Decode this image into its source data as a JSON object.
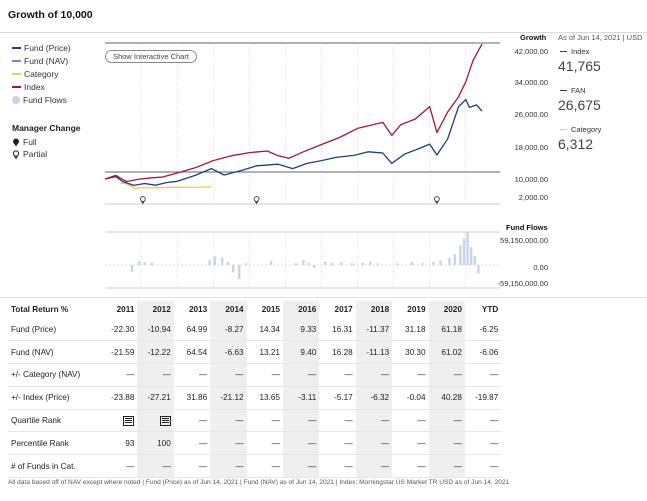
{
  "title": "Growth of 10,000",
  "legend": [
    {
      "label": "Fund (Price)",
      "color": "#1f3f7a",
      "kind": "line"
    },
    {
      "label": "Fund (NAV)",
      "color": "#7e8aa0",
      "kind": "line"
    },
    {
      "label": "Category",
      "color": "#f0c960",
      "kind": "line"
    },
    {
      "label": "Index",
      "color": "#a0183c",
      "kind": "line"
    },
    {
      "label": "Fund Flows",
      "color": "#c8d4e6",
      "kind": "dot"
    }
  ],
  "manager_change": {
    "title": "Manager Change",
    "items": [
      {
        "label": "Full",
        "icon": "filled-pin-icon"
      },
      {
        "label": "Partial",
        "icon": "hollow-pin-icon"
      }
    ]
  },
  "interactive_button": "Show Interactive Chart",
  "growth_axis": {
    "header": "Growth",
    "ticks": [
      "42,000.00",
      "34,000.00",
      "26,000.00",
      "18,000.00",
      "10,000.00",
      "2,000.00"
    ]
  },
  "as_of": "As of Jun 14, 2021 | USD",
  "side_values": [
    {
      "name": "Index",
      "value": "41,765",
      "color": "#a0183c"
    },
    {
      "name": "FAN",
      "value": "26,675",
      "color": "#1f3f7a"
    },
    {
      "name": "Category",
      "value": "6,312",
      "color": "#f0c960"
    }
  ],
  "fund_flows": {
    "header": "Fund Flows",
    "ticks": [
      "59,150,000.00",
      "0.00",
      "-59,150,000.00"
    ]
  },
  "chart_data": {
    "type": "line",
    "title": "Growth of 10,000",
    "x_range": [
      2011,
      2021.45
    ],
    "y_range": [
      2000,
      42000
    ],
    "yticks": [
      42000,
      34000,
      26000,
      18000,
      10000,
      2000
    ],
    "series": [
      {
        "name": "Index",
        "color": "#a0183c",
        "points": [
          [
            2011.0,
            10000
          ],
          [
            2011.3,
            10900
          ],
          [
            2011.6,
            8800
          ],
          [
            2011.9,
            9800
          ],
          [
            2012.3,
            10300
          ],
          [
            2012.6,
            10500
          ],
          [
            2013.0,
            11500
          ],
          [
            2013.5,
            12800
          ],
          [
            2014.0,
            14600
          ],
          [
            2014.5,
            15800
          ],
          [
            2015.0,
            16600
          ],
          [
            2015.5,
            17000
          ],
          [
            2015.8,
            15800
          ],
          [
            2016.1,
            15200
          ],
          [
            2016.5,
            16800
          ],
          [
            2017.0,
            18600
          ],
          [
            2017.5,
            20300
          ],
          [
            2018.0,
            22500
          ],
          [
            2018.7,
            24000
          ],
          [
            2018.95,
            20800
          ],
          [
            2019.2,
            23400
          ],
          [
            2019.6,
            24800
          ],
          [
            2020.0,
            27800
          ],
          [
            2020.2,
            21500
          ],
          [
            2020.5,
            26500
          ],
          [
            2020.8,
            30200
          ],
          [
            2021.0,
            33800
          ],
          [
            2021.2,
            38300
          ],
          [
            2021.45,
            41765
          ]
        ]
      },
      {
        "name": "Fund (Price)",
        "color": "#1f3f7a",
        "points": [
          [
            2011.0,
            10000
          ],
          [
            2011.3,
            10600
          ],
          [
            2011.5,
            8700
          ],
          [
            2011.8,
            7000
          ],
          [
            2012.1,
            7900
          ],
          [
            2012.4,
            7100
          ],
          [
            2012.7,
            8300
          ],
          [
            2013.0,
            8900
          ],
          [
            2013.5,
            10900
          ],
          [
            2013.95,
            12600
          ],
          [
            2014.3,
            11000
          ],
          [
            2014.8,
            12200
          ],
          [
            2015.2,
            13300
          ],
          [
            2015.8,
            13700
          ],
          [
            2016.2,
            12600
          ],
          [
            2016.6,
            13900
          ],
          [
            2017.0,
            14600
          ],
          [
            2017.4,
            15400
          ],
          [
            2017.9,
            15900
          ],
          [
            2018.3,
            16800
          ],
          [
            2018.7,
            16500
          ],
          [
            2018.95,
            13900
          ],
          [
            2019.3,
            16200
          ],
          [
            2019.7,
            17600
          ],
          [
            2020.0,
            18700
          ],
          [
            2020.2,
            16000
          ],
          [
            2020.5,
            20000
          ],
          [
            2020.8,
            27800
          ],
          [
            2021.0,
            29500
          ],
          [
            2021.1,
            27600
          ],
          [
            2021.3,
            28200
          ],
          [
            2021.45,
            26675
          ]
        ]
      },
      {
        "name": "Category",
        "color": "#f0c960",
        "points": [
          [
            2011.4,
            7800
          ],
          [
            2011.55,
            8100
          ],
          [
            2011.7,
            6700
          ],
          [
            2011.85,
            5500
          ],
          [
            2012.0,
            6000
          ],
          [
            2012.2,
            5800
          ],
          [
            2012.5,
            5900
          ],
          [
            2012.8,
            6100
          ],
          [
            2013.0,
            6150
          ],
          [
            2013.5,
            6050
          ],
          [
            2013.95,
            6312
          ]
        ]
      }
    ],
    "manager_change_markers": [
      {
        "x": 2012.05,
        "type": "Partial"
      },
      {
        "x": 2015.2,
        "type": "Partial"
      },
      {
        "x": 2020.2,
        "type": "Partial"
      }
    ]
  },
  "fund_flow_bars": [
    {
      "x": 2011.75,
      "v": -12000000.0
    },
    {
      "x": 2011.95,
      "v": 7000000.0
    },
    {
      "x": 2012.1,
      "v": 5000000.0
    },
    {
      "x": 2012.3,
      "v": 4000000.0
    },
    {
      "x": 2013.9,
      "v": 9000000.0
    },
    {
      "x": 2014.05,
      "v": 15000000.0
    },
    {
      "x": 2014.25,
      "v": 13000000.0
    },
    {
      "x": 2014.4,
      "v": 6000000.0
    },
    {
      "x": 2014.55,
      "v": -13000000.0
    },
    {
      "x": 2014.72,
      "v": -25000000.0
    },
    {
      "x": 2014.9,
      "v": 3000000.0
    },
    {
      "x": 2015.6,
      "v": 7000000.0
    },
    {
      "x": 2016.3,
      "v": 3000000.0
    },
    {
      "x": 2016.5,
      "v": 9000000.0
    },
    {
      "x": 2016.65,
      "v": 4000000.0
    },
    {
      "x": 2016.8,
      "v": -5000000.0
    },
    {
      "x": 2017.1,
      "v": 6000000.0
    },
    {
      "x": 2017.3,
      "v": 4000000.0
    },
    {
      "x": 2017.55,
      "v": 5000000.0
    },
    {
      "x": 2017.85,
      "v": 3000000.0
    },
    {
      "x": 2018.15,
      "v": 4000000.0
    },
    {
      "x": 2018.35,
      "v": 6000000.0
    },
    {
      "x": 2018.55,
      "v": 3000000.0
    },
    {
      "x": 2019.1,
      "v": 3000000.0
    },
    {
      "x": 2019.5,
      "v": 6000000.0
    },
    {
      "x": 2019.8,
      "v": 4000000.0
    },
    {
      "x": 2020.1,
      "v": 5000000.0
    },
    {
      "x": 2020.3,
      "v": 8000000.0
    },
    {
      "x": 2020.55,
      "v": 13000000.0
    },
    {
      "x": 2020.7,
      "v": 19000000.0
    },
    {
      "x": 2020.85,
      "v": 35000000.0
    },
    {
      "x": 2020.95,
      "v": 48000000.0
    },
    {
      "x": 2021.05,
      "v": 59000000.0
    },
    {
      "x": 2021.15,
      "v": 32000000.0
    },
    {
      "x": 2021.25,
      "v": 16000000.0
    },
    {
      "x": 2021.35,
      "v": -15000000.0
    }
  ],
  "table": {
    "row_header": "Total Return %",
    "years": [
      "2011",
      "2012",
      "2013",
      "2014",
      "2015",
      "2016",
      "2017",
      "2018",
      "2019",
      "2020",
      "YTD"
    ],
    "rows": [
      {
        "label": "Fund (Price)",
        "values": [
          "-22.30",
          "-10.94",
          "64.99",
          "-8.27",
          "14.34",
          "9.33",
          "16.31",
          "-11.37",
          "31.18",
          "61.18",
          "-6.25"
        ]
      },
      {
        "label": "Fund (NAV)",
        "values": [
          "-21.59",
          "-12.22",
          "64.54",
          "-6.63",
          "13.21",
          "9.40",
          "16.28",
          "-11.13",
          "30.30",
          "61.02",
          "-6.06"
        ]
      },
      {
        "label": "+/- Category (NAV)",
        "values": [
          "—",
          "—",
          "—",
          "—",
          "—",
          "—",
          "—",
          "—",
          "—",
          "—",
          "—"
        ]
      },
      {
        "label": "+/- Index (Price)",
        "values": [
          "-23.88",
          "-27.21",
          "31.86",
          "-21.12",
          "13.65",
          "-3.11",
          "-5.17",
          "-6.32",
          "-0.04",
          "40.28",
          "-19.87"
        ]
      },
      {
        "label": "Quartile Rank",
        "values": [
          "quartile-4-icon",
          "quartile-4-icon",
          "—",
          "—",
          "—",
          "—",
          "—",
          "—",
          "—",
          "—",
          "—"
        ]
      },
      {
        "label": "Percentile Rank",
        "values": [
          "93",
          "100",
          "—",
          "—",
          "—",
          "—",
          "—",
          "—",
          "—",
          "—",
          "—"
        ]
      },
      {
        "label": "# of Funds in Cat.",
        "values": [
          "—",
          "—",
          "—",
          "—",
          "—",
          "—",
          "—",
          "—",
          "—",
          "—",
          "—"
        ]
      }
    ]
  },
  "footnote": "All data based off of NAV except where noted  | Fund (Price) as of Jun 14, 2021 | Fund (NAV) as of Jun 14, 2021 | Index: Morningstar US Market TR USD as of Jun 14, 2021"
}
